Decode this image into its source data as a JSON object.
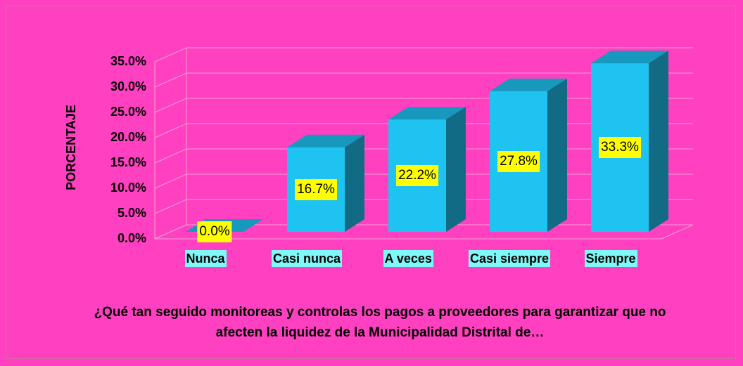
{
  "chart_data": {
    "type": "bar3d",
    "x_label": "¿Qué tan seguido monitoreas y controlas los pagos a proveedores para garantizar que no afecten la liquidez de la Municipalidad Distrital de…",
    "y_label": "PORCENTAJE",
    "categories": [
      "Nunca",
      "Casi nunca",
      "A veces",
      "Casi siempre",
      "Siempre"
    ],
    "values": [
      0,
      16.7,
      22.2,
      27.8,
      33.3
    ],
    "value_labels": [
      "0.0%",
      "16.7%",
      "22.2%",
      "27.8%",
      "33.3%"
    ],
    "color": "#1ec3f2",
    "ylim": [
      0,
      35
    ],
    "yticks": [
      {
        "value": 0,
        "label": "0.0%"
      },
      {
        "value": 5,
        "label": "5.0%"
      },
      {
        "value": 10,
        "label": "10.0%"
      },
      {
        "value": 15,
        "label": "15.0%"
      },
      {
        "value": 20,
        "label": "20.0%"
      },
      {
        "value": 25,
        "label": "25.0%"
      },
      {
        "value": 30,
        "label": "30.0%"
      },
      {
        "value": 35,
        "label": "35.0%"
      }
    ],
    "grid": true
  }
}
